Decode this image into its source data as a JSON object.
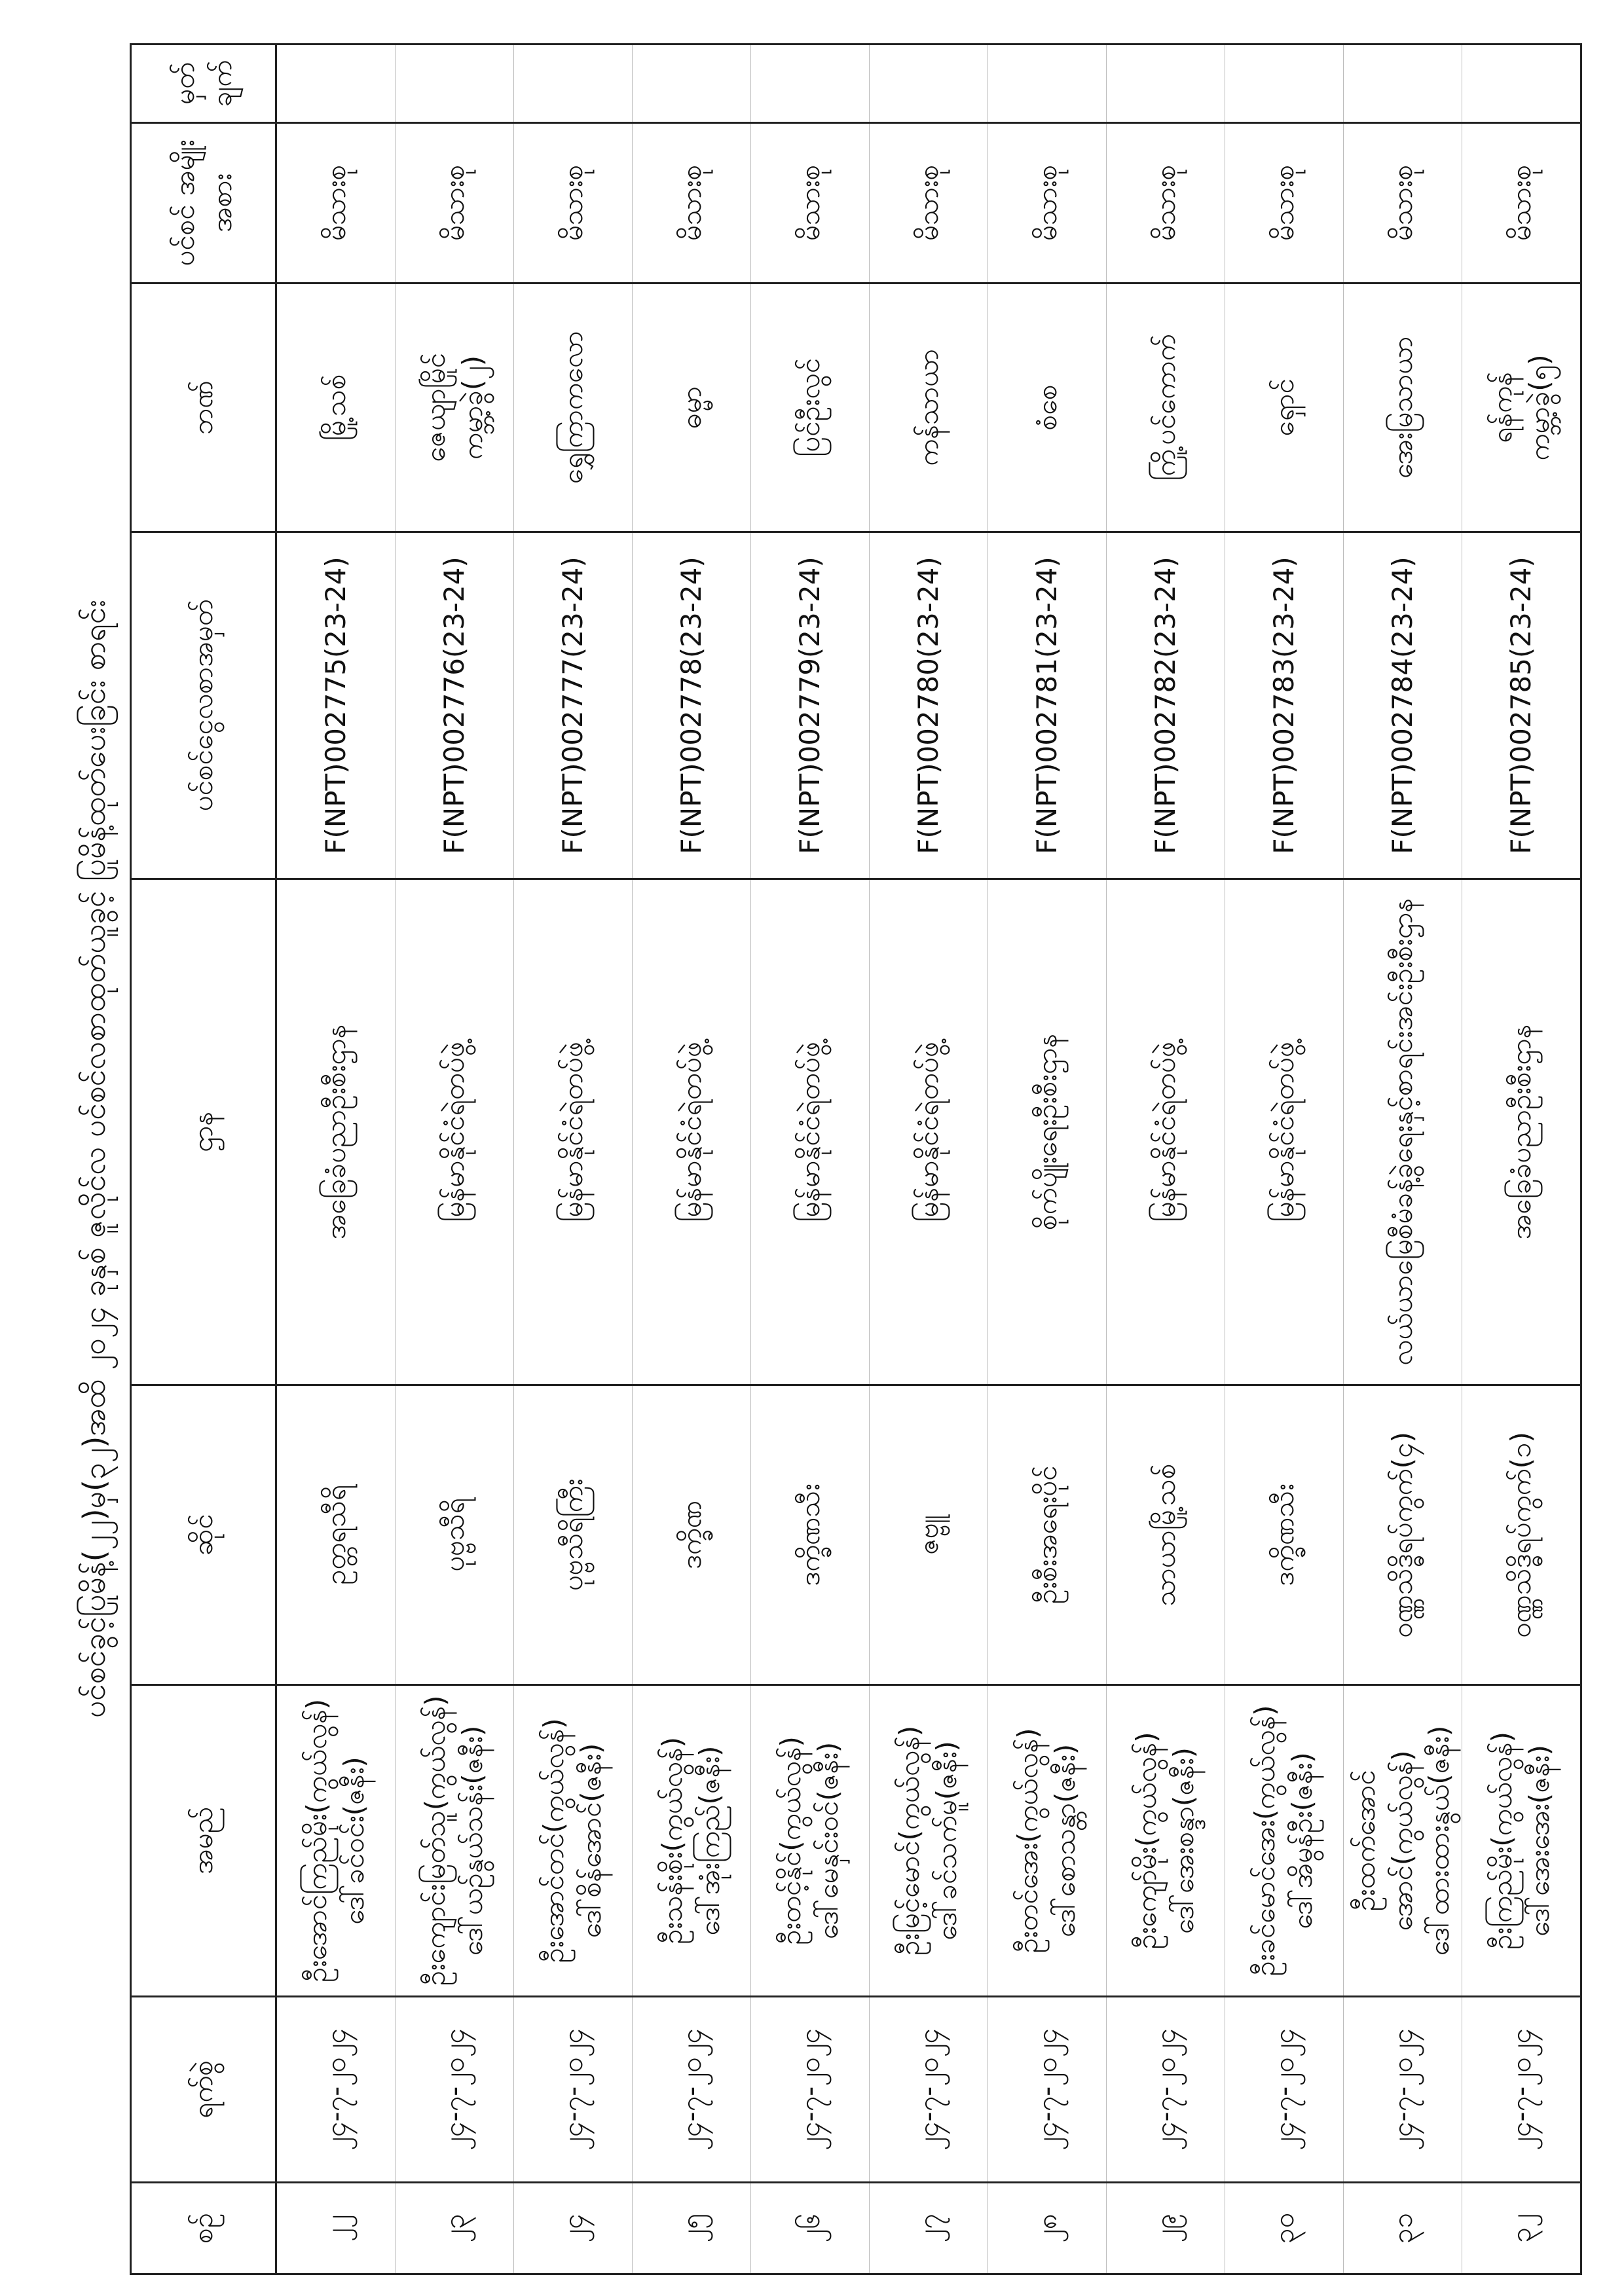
{
  "title": "ပင်စင်ခွင့်ပြုမိန့်(၂၂)မှ(၃၂)အထိ ၂၀၂၄ ခုနှစ် ဇူလိုင်လ ပင်စင်လစာထုတ်ယူခွင့် ပြုမိန့်ထုတ်ပေးခြင်း စာရင်း",
  "headers": [
    "စဉ်",
    "ရက်စွဲ",
    "အမည်",
    "ဆိုင်",
    "ဌာန",
    "ပင်စင်ငွေလစာအမှတ်",
    "ဘဏ်",
    "ပင်စင် အမျိုးအစား",
    "မှတ် ချက်"
  ],
  "rows": [
    {
      "no": "၂၂",
      "date": "၂၄-၇-၂၀၂၄",
      "name1": "ဦးအောင်ကြည်မိုး(ကွယ်လွန်)",
      "name2": "ဒေါ်ခင်ဝင်း(ဇနီး)",
      "area": "ဥတ္တရသီရိ",
      "dept": "အခြေခံပညာဦးစီးဌာန",
      "pension_no": "F(NPT)002775(23-24)",
      "bank1": "မြို့သစ်",
      "bank2": "",
      "type": "မိသားစု",
      "remark": ""
    },
    {
      "no": "၂၃",
      "date": "၂၄-၇-၂၀၂၄",
      "name1": "ဦးကျောင်းမြတ်သူ(ကွယ်လွန်)",
      "name2": "ဒေါ်ယဉ်နွယ်သန်း(ဇနီး)",
      "area": "ပုဗ္ဗသီရိ",
      "dept": "မြန်မာနိုင်ငံရဲတပ်ဖွဲ့",
      "pension_no": "F(NPT)002776(23-24)",
      "bank1": "ဇေယျာမြိုင်",
      "bank2": "ကမ္ဘာ့ခွဲ(၂)",
      "type": "မိသားစု",
      "remark": ""
    },
    {
      "no": "၂၄",
      "date": "၂၄-၇-၂၀၂၄",
      "name1": "ဦးအောင်တင်(ကွယ်လွန်)",
      "name2": "ဒေါ်စိန်အောင်(ဇနီး)",
      "area": "ပုဗ္ဗသီရိကြီး",
      "dept": "မြန်မာနိုင်ငံရဲတပ်ဖွဲ့",
      "pension_no": "F(NPT)002777(23-24)",
      "bank1": "ရွှေကြာကလော",
      "bank2": "",
      "type": "မိသားစု",
      "remark": ""
    },
    {
      "no": "၂၅",
      "date": "၂၄-၇-၂၀၂၄",
      "name1": "ဦးသန်းစိုး(ကွယ်လွန်)",
      "name2": "ဒေါ်အုံးကြည်(ဇနီး)",
      "area": "ဒက္ခိဏ",
      "dept": "မြန်မာနိုင်ငံရဲတပ်ဖွဲ့",
      "pension_no": "F(NPT)002778(23-24)",
      "bank1": "ဓမ္မာ",
      "bank2": "",
      "type": "မိသားစု",
      "remark": ""
    },
    {
      "no": "၂၆",
      "date": "၂၄-၇-၂၀၂၄",
      "name1": "ဦးတင့်နိုင်(ကွယ်လွန်)",
      "name2": "ဒေါ်မေနှင်းဝင်(ဇနီး)",
      "area": "ဒက္ခိဏသီး",
      "dept": "မြန်မာနိုင်ငံရဲတပ်ဖွဲ့",
      "pension_no": "F(NPT)002779(23-24)",
      "bank1": "ပြင်ဦးလွင်",
      "bank2": "",
      "type": "မိသားစု",
      "remark": ""
    },
    {
      "no": "၂၇",
      "date": "၂၄-၇-၂၀၂၄",
      "name1": "ဦးမြင့်မောင်(ကွယ်လွန်)",
      "name2": "ဒေါ်ခင်သက်မူ(ဇနီး)",
      "area": "ဇဗ္ဗူ",
      "dept": "မြန်မာနိုင်ငံရဲတပ်ဖွဲ့",
      "pension_no": "F(NPT)002780(23-24)",
      "bank1": "ကန်သာယာ",
      "bank2": "",
      "type": "မိသားစု",
      "remark": ""
    },
    {
      "no": "၂၈",
      "date": "၂၄-၇-၂၀၂၄",
      "name1": "ဦးတင်အေး(ကွယ်လွန်)",
      "name2": "ဒေါ်စောသန္တာ(ဇနီး)",
      "area": "ဦးစီးအရေးပိုင်",
      "dept": "စိုက်ပျိုးရေးဦးစီးဌာန",
      "pension_no": "F(NPT)002781(23-24)",
      "bank1": "စံစေ",
      "bank2": "",
      "type": "မိသားစု",
      "remark": ""
    },
    {
      "no": "၂၉",
      "date": "၂၄-၇-၂၀၂၄",
      "name1": "ဦးကျော်မိုး(ကွယ်လွန်)",
      "name2": "ဒေါ်အေးစန္ဒာ(ဇနီး)",
      "area": "သာယာမြို့သစ်",
      "dept": "မြန်မာနိုင်ငံရဲတပ်ဖွဲ့",
      "pension_no": "F(NPT)002782(23-24)",
      "bank1": "ကြို့ပင်ကောက်",
      "bank2": "",
      "type": "မိသားစု",
      "remark": ""
    },
    {
      "no": "၃၀",
      "date": "၂၄-၇-၂၀၂၄",
      "name1": "ဦးခင်မောင်အေး(ကွယ်လွန်)",
      "name2": "ဒေါ်အိမွန်ဦး(ဇနီး)",
      "area": "ဒက္ခိဏသီး",
      "dept": "မြန်မာနိုင်ငံရဲတပ်ဖွဲ့",
      "pension_no": "F(NPT)002783(23-24)",
      "bank1": "ရှောင်",
      "bank2": "",
      "type": "မိသားစု",
      "remark": ""
    },
    {
      "no": "၃၁",
      "date": "၂၄-၇-၂၀၂၄",
      "name1": "ဦးထက်အောင်အောင်(ကွယ်လွန်)",
      "name2": "ဒေါ်ထားထားနွယ်(ဇနီး)",
      "area": "ဝဏ္ဏသိဒ္ဓိရပ်ကွက်(၄)",
      "dept": "လယ်ယာမြေစီမံခန့်ခွဲရေးနှင့်စာရင်းအင်းဦးစီးဌာန",
      "pension_no": "F(NPT)002784(23-24)",
      "bank1": "အေးမြသာယာ",
      "bank2": "",
      "type": "မိသားစု",
      "remark": ""
    },
    {
      "no": "၃၂",
      "date": "၂၄-၇-၂၀၂၄",
      "name1": "ဦးကြည်မိုး(ကွယ်လွန်)",
      "name2": "ဒေါ်အေးအေး(ဇနီး)",
      "area": "ဝဏ္ဏသိဒ္ဓိရပ်ကွက်(၁)",
      "dept": "အခြေခံပညာဦးစီးဌာန",
      "pension_no": "F(NPT)002785(23-24)",
      "bank1": "ရန်ကုန်",
      "bank2": "ကမ္ဘာ့ခွဲ(၅)",
      "type": "မိသားစု",
      "remark": ""
    }
  ]
}
